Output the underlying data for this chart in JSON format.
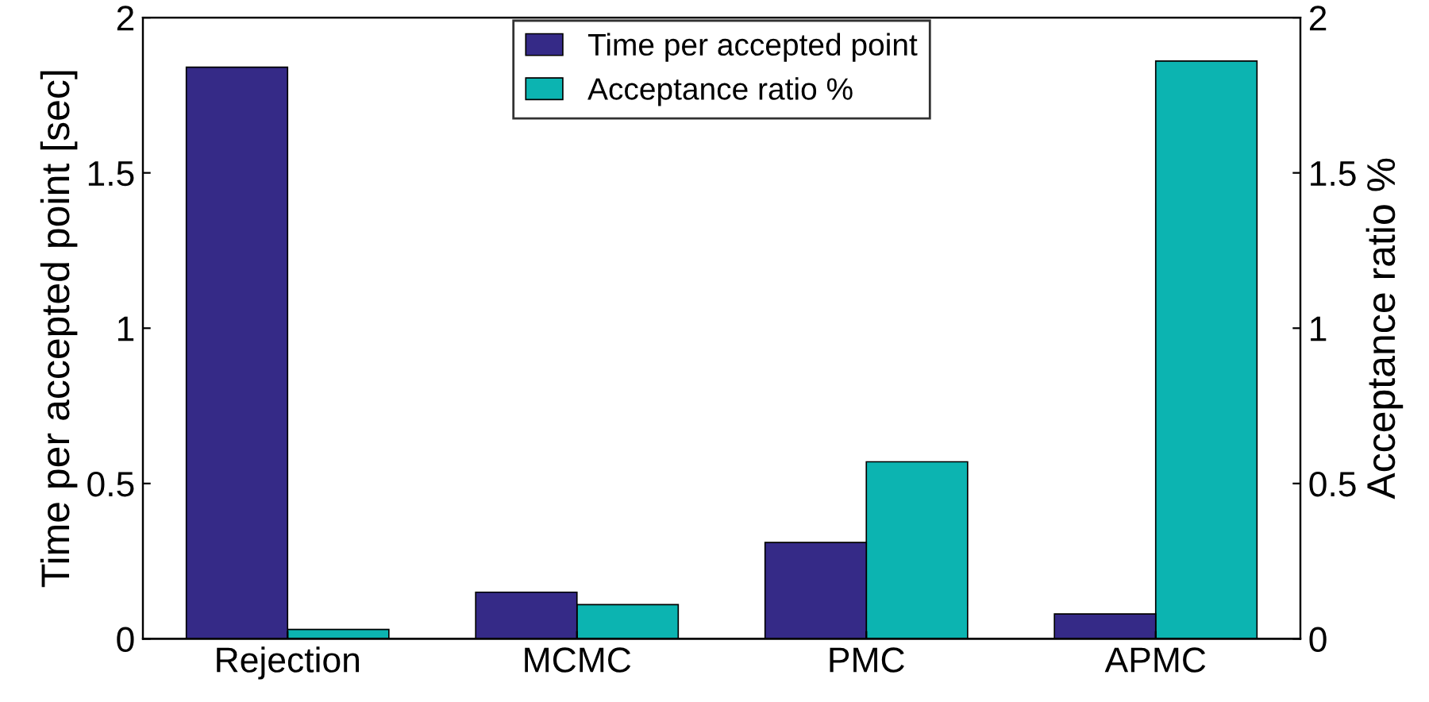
{
  "chart_data": {
    "type": "bar",
    "categories": [
      "Rejection",
      "MCMC",
      "PMC",
      "APMC"
    ],
    "ylabel": "Time per accepted point [sec]",
    "y2label": "Acceptance ratio %",
    "ylim": [
      0,
      2
    ],
    "yticks": [
      0,
      0.5,
      1,
      1.5,
      2
    ],
    "y2lim": [
      0,
      2
    ],
    "y2ticks": [
      0,
      0.5,
      1,
      1.5,
      2
    ],
    "legend": "top",
    "grid": false,
    "series": [
      {
        "name": "Time per accepted point",
        "color": "#352a87",
        "values": [
          1.84,
          0.15,
          0.31,
          0.08
        ]
      },
      {
        "name": "Acceptance ratio %",
        "color": "#0cb4b1",
        "axis": "y2",
        "values": [
          0.03,
          0.11,
          0.57,
          1.86
        ]
      }
    ]
  }
}
